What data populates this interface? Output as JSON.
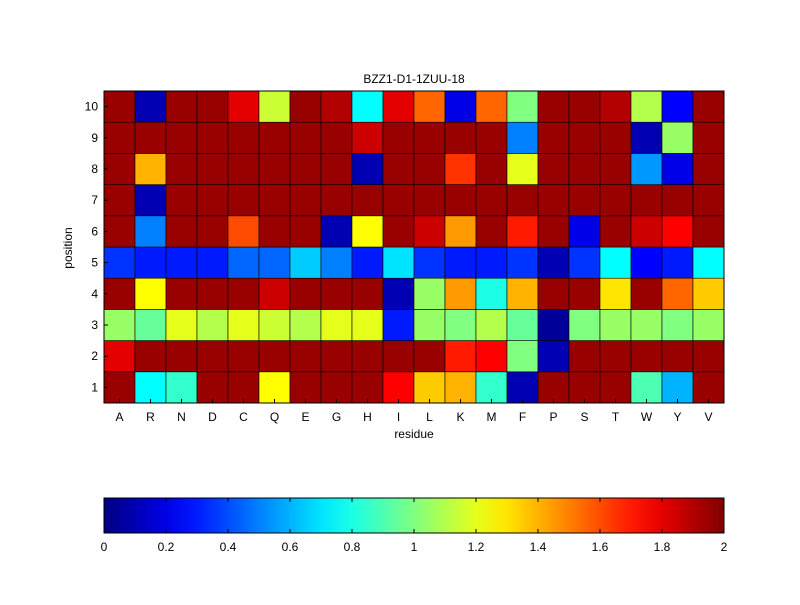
{
  "chart_data": {
    "type": "heatmap",
    "title": "BZZ1-D1-1ZUU-18",
    "xlabel": "residue",
    "ylabel": "position",
    "x_categories": [
      "A",
      "R",
      "N",
      "D",
      "C",
      "Q",
      "E",
      "G",
      "H",
      "I",
      "L",
      "K",
      "M",
      "F",
      "P",
      "S",
      "T",
      "W",
      "Y",
      "V"
    ],
    "y_categories": [
      "1",
      "2",
      "3",
      "4",
      "5",
      "6",
      "7",
      "8",
      "9",
      "10"
    ],
    "colormap": "jet",
    "clim": [
      0,
      2
    ],
    "colorbar": {
      "placement": "bottom",
      "ticks": [
        0,
        0.2,
        0.4,
        0.6,
        0.8,
        1,
        1.2,
        1.4,
        1.6,
        1.8,
        2
      ],
      "tick_labels": [
        "0",
        "0.2",
        "0.4",
        "0.6",
        "0.8",
        "1",
        "1.2",
        "1.4",
        "1.6",
        "1.8",
        "2"
      ]
    },
    "rows": [
      {
        "position": "1",
        "values": [
          1.95,
          0.75,
          0.85,
          1.95,
          1.95,
          1.25,
          1.95,
          1.95,
          1.95,
          1.75,
          1.35,
          1.4,
          0.85,
          0.1,
          1.95,
          1.95,
          1.95,
          0.9,
          0.6,
          1.95
        ]
      },
      {
        "position": "2",
        "values": [
          1.8,
          1.95,
          1.95,
          1.95,
          1.95,
          1.95,
          1.95,
          1.95,
          1.95,
          1.95,
          1.95,
          1.7,
          1.75,
          1.0,
          0.1,
          1.95,
          1.95,
          1.95,
          1.95,
          1.95
        ]
      },
      {
        "position": "3",
        "values": [
          1.05,
          0.95,
          1.2,
          1.1,
          1.2,
          1.15,
          1.1,
          1.2,
          1.2,
          0.3,
          1.05,
          1.0,
          1.1,
          0.95,
          0.05,
          1.0,
          1.05,
          1.05,
          1.0,
          1.05
        ]
      },
      {
        "position": "4",
        "values": [
          1.95,
          1.25,
          1.95,
          1.95,
          1.95,
          1.85,
          1.95,
          1.95,
          1.95,
          0.1,
          1.05,
          1.45,
          0.8,
          1.4,
          1.95,
          1.95,
          1.3,
          1.95,
          1.55,
          1.35
        ]
      },
      {
        "position": "5",
        "values": [
          0.35,
          0.3,
          0.3,
          0.3,
          0.45,
          0.45,
          0.65,
          0.5,
          0.3,
          0.7,
          0.35,
          0.3,
          0.3,
          0.35,
          0.1,
          0.35,
          0.75,
          0.25,
          0.3,
          0.75
        ]
      },
      {
        "position": "6",
        "values": [
          1.95,
          0.5,
          1.95,
          1.95,
          1.6,
          1.95,
          1.95,
          0.1,
          1.25,
          1.95,
          1.85,
          1.45,
          1.95,
          1.7,
          1.95,
          0.2,
          1.95,
          1.85,
          1.75,
          1.95
        ]
      },
      {
        "position": "7",
        "values": [
          1.95,
          0.1,
          1.95,
          1.95,
          1.95,
          1.95,
          1.95,
          1.95,
          1.95,
          1.95,
          1.95,
          1.95,
          1.95,
          1.95,
          1.95,
          1.95,
          1.95,
          1.95,
          1.95,
          1.95
        ]
      },
      {
        "position": "8",
        "values": [
          1.95,
          1.4,
          1.95,
          1.95,
          1.95,
          1.95,
          1.95,
          1.95,
          0.1,
          1.95,
          1.95,
          1.65,
          1.95,
          1.2,
          1.95,
          1.95,
          1.95,
          0.55,
          0.2,
          1.95
        ]
      },
      {
        "position": "9",
        "values": [
          1.95,
          1.95,
          1.95,
          1.95,
          1.95,
          1.95,
          1.95,
          1.95,
          1.85,
          1.95,
          1.95,
          1.95,
          1.95,
          0.5,
          1.95,
          1.95,
          1.95,
          0.1,
          1.05,
          1.95
        ]
      },
      {
        "position": "10",
        "values": [
          1.95,
          0.1,
          1.95,
          1.95,
          1.8,
          1.15,
          1.95,
          1.9,
          0.75,
          1.8,
          1.55,
          0.2,
          1.55,
          1.0,
          1.95,
          1.95,
          1.9,
          1.1,
          0.25,
          1.95
        ]
      }
    ]
  }
}
